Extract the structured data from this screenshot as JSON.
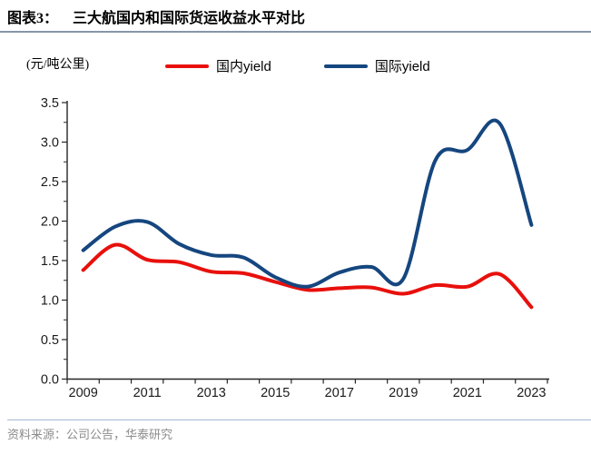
{
  "header": {
    "label": "图表3：",
    "title": "三大航国内和国际货运收益水平对比"
  },
  "unit_label": "(元/吨公里)",
  "legend": [
    {
      "label": "国内yield",
      "color": "#e8100c"
    },
    {
      "label": "国际yield",
      "color": "#15467f"
    }
  ],
  "footer": {
    "source": "资料来源：公司公告，华泰研究"
  },
  "colors": {
    "title_rule": "#8796a8",
    "footer_rule": "#a3bbd2",
    "axis": "#262626",
    "tick_label": "#1a1a1a",
    "domestic_line": "#e8100c",
    "international_line": "#15467f"
  },
  "chart_data": {
    "type": "line",
    "title": "三大航国内和国际货运收益水平对比",
    "ylabel": "(元/吨公里)",
    "x": [
      2009,
      2010,
      2011,
      2012,
      2013,
      2014,
      2015,
      2016,
      2017,
      2018,
      2019,
      2020,
      2021,
      2022,
      2023
    ],
    "series": [
      {
        "name": "国内yield",
        "color": "#e8100c",
        "values": [
          1.38,
          1.7,
          1.51,
          1.48,
          1.36,
          1.34,
          1.23,
          1.13,
          1.15,
          1.16,
          1.08,
          1.19,
          1.17,
          1.33,
          0.91
        ]
      },
      {
        "name": "国际yield",
        "color": "#15467f",
        "values": [
          1.63,
          1.93,
          1.99,
          1.71,
          1.57,
          1.54,
          1.29,
          1.17,
          1.35,
          1.42,
          1.27,
          2.77,
          2.9,
          3.24,
          1.95
        ]
      }
    ],
    "ylim": [
      0.0,
      3.5
    ],
    "y_tick_step": 0.5,
    "y_minor_tick_step": 0.25,
    "y_ticks": [
      "0.0",
      "0.5",
      "1.0",
      "1.5",
      "2.0",
      "2.5",
      "3.0",
      "3.5"
    ],
    "x_tick_labels": [
      "2009",
      "2011",
      "2013",
      "2015",
      "2017",
      "2019",
      "2021",
      "2023"
    ],
    "grid": false,
    "smooth": true,
    "legend_position": "top"
  }
}
